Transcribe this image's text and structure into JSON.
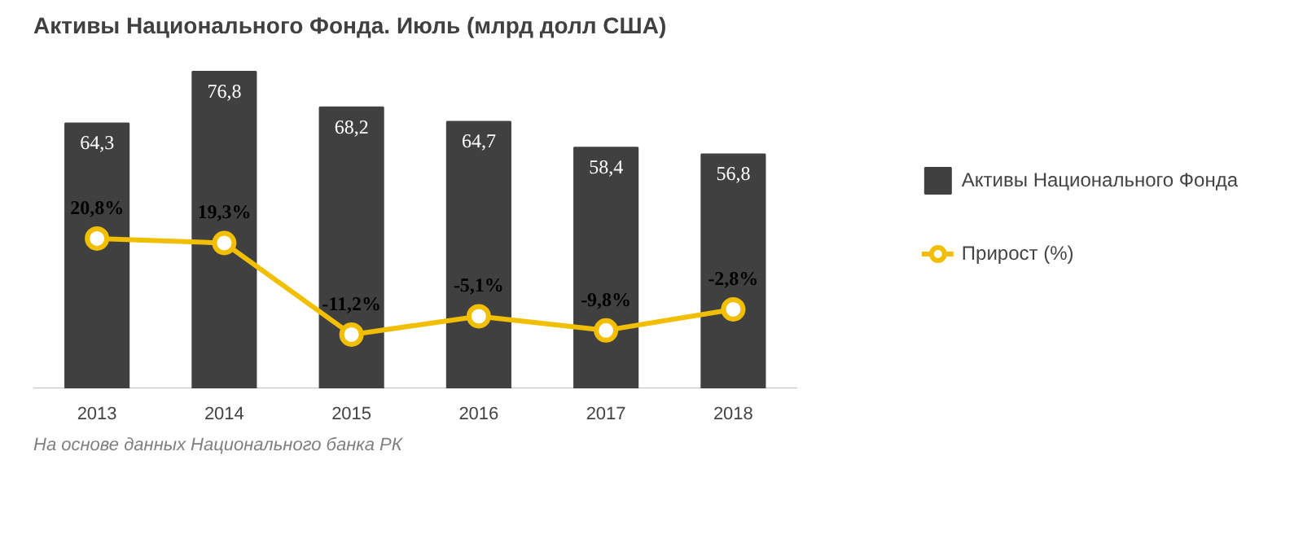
{
  "chart_data": {
    "type": "bar",
    "title": "Активы Национального Фонда. Июль (млрд долл США)",
    "categories": [
      "2013",
      "2014",
      "2015",
      "2016",
      "2017",
      "2018"
    ],
    "series": [
      {
        "name": "Активы Национального Фонда",
        "color": "#404040",
        "values": [
          64.3,
          76.8,
          68.2,
          64.7,
          58.4,
          56.8
        ],
        "value_labels": [
          "64,3",
          "76,8",
          "68,2",
          "64,7",
          "58,4",
          "56,8"
        ]
      },
      {
        "name": "Прирост (%)",
        "type": "line",
        "axis": "y2",
        "color": "#f2be00",
        "values": [
          20.8,
          19.3,
          -11.2,
          -5.1,
          -9.8,
          -2.8
        ],
        "value_labels": [
          "20,8%",
          "19,3%",
          "-11,2%",
          "-5,1%",
          "-9,8%",
          "-2,8%"
        ]
      }
    ],
    "tick_labels": "x",
    "marker": "circle",
    "legend": "right",
    "annotations": [
      "На основе данных Национального банка РК"
    ]
  }
}
